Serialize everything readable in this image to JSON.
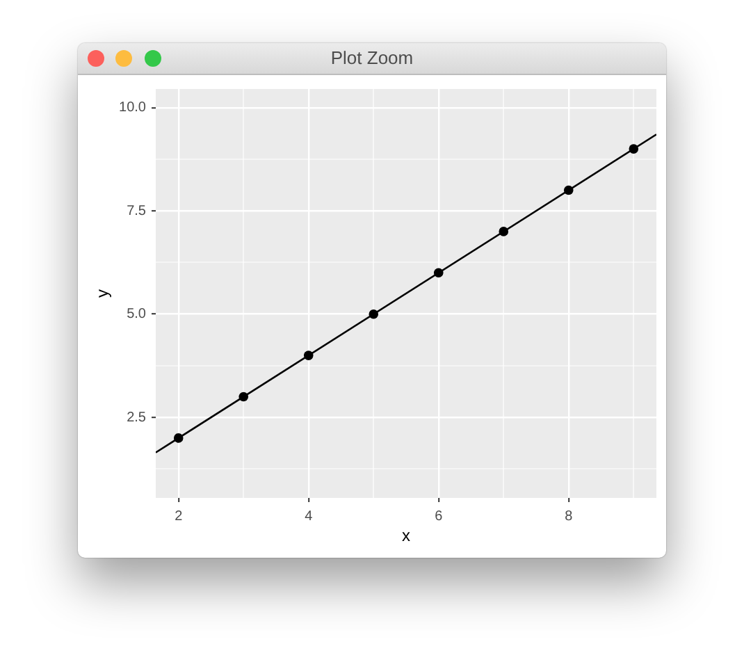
{
  "chart_data": {
    "type": "scatter",
    "title": "Plot Zoom",
    "xlabel": "x",
    "ylabel": "y",
    "series": [
      {
        "type": "line",
        "marker": "none",
        "color": "#000000",
        "x": [
          1.65,
          9.35
        ],
        "values": [
          1.65,
          9.35
        ]
      },
      {
        "type": "scatter",
        "color": "#000000",
        "x": [
          2,
          3,
          4,
          5,
          6,
          7,
          8,
          9
        ],
        "values": [
          2,
          3,
          4,
          5,
          6,
          7,
          8,
          9
        ]
      }
    ],
    "xlim": [
      1.65,
      9.35
    ],
    "ylim": [
      0.55,
      10.45
    ],
    "xticks": [
      2,
      {
        "value": 3,
        "label": null
      },
      4,
      {
        "value": 5,
        "label": null
      },
      6,
      {
        "value": 7,
        "label": null
      },
      8,
      {
        "value": 9,
        "label": null
      }
    ],
    "yticks": [
      {
        "value": 1.25,
        "label": null
      },
      2.5,
      {
        "value": 3.75,
        "label": null
      },
      {
        "value": 5,
        "label": "5.0"
      },
      {
        "value": 6.25,
        "label": null
      },
      7.5,
      {
        "value": 8.75,
        "label": null
      },
      {
        "value": 10,
        "label": "10.0"
      }
    ],
    "grid": true,
    "legend": false,
    "marker": "circle"
  }
}
